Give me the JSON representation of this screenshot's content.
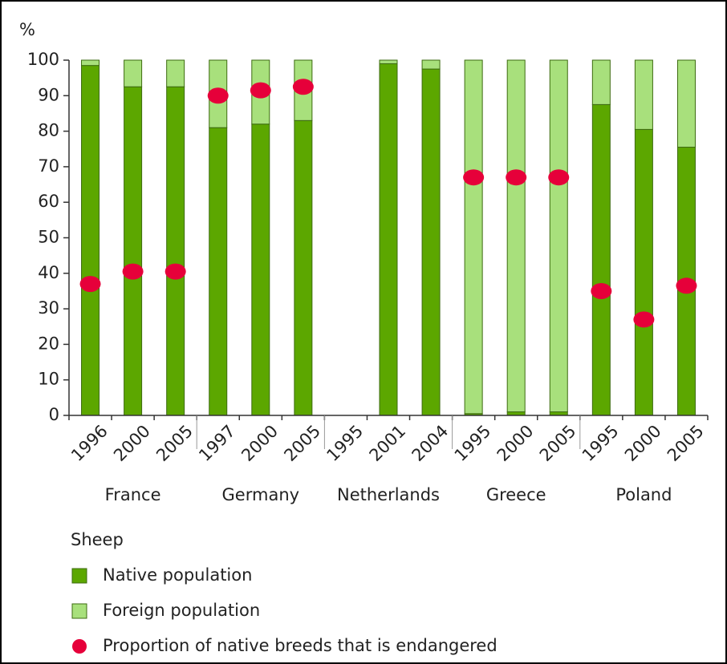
{
  "chart_data": {
    "type": "stacked-bar",
    "y_label": "%",
    "groups": [
      "France",
      "Germany",
      "Netherlands",
      "Greece",
      "Poland"
    ],
    "categories": [
      "1996",
      "2000",
      "2005",
      "1997",
      "2000",
      "2005",
      "1995",
      "2001",
      "2004",
      "1995",
      "2000",
      "2005",
      "1995",
      "2000",
      "2005"
    ],
    "series": [
      {
        "name": "Native population",
        "color": "#5ca700",
        "values": [
          98.5,
          92.5,
          92.5,
          81,
          82,
          83,
          null,
          99,
          97.5,
          0.5,
          1,
          1,
          87.5,
          80.5,
          75.5
        ]
      },
      {
        "name": "Foreign population",
        "color": "#a8e07c",
        "values": [
          1.5,
          7.5,
          7.5,
          19,
          18,
          17,
          null,
          1,
          2.5,
          99.5,
          99,
          99,
          12.5,
          19.5,
          24.5
        ]
      },
      {
        "name": "Proportion of native breeds that is endangered",
        "color": "#e6003a",
        "type": "dot",
        "values": [
          37,
          40.5,
          40.5,
          90,
          91.5,
          92.5,
          null,
          null,
          null,
          67,
          67,
          67,
          35,
          27,
          36.5
        ]
      }
    ],
    "legend_title": "Sheep",
    "ylim": [
      0,
      100
    ],
    "yticks": [
      0,
      10,
      20,
      30,
      40,
      50,
      60,
      70,
      80,
      90,
      100
    ]
  }
}
